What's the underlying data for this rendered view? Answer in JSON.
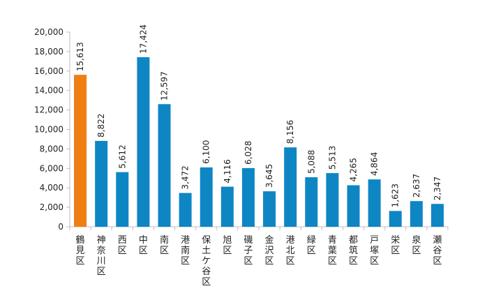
{
  "chart_data": {
    "type": "bar",
    "categories": [
      "鶴見区",
      "神奈川区",
      "西区",
      "中区",
      "南区",
      "港南区",
      "保土ケ谷区",
      "旭区",
      "磯子区",
      "金沢区",
      "港北区",
      "緑区",
      "青葉区",
      "都筑区",
      "戸塚区",
      "栄区",
      "泉区",
      "瀬谷区"
    ],
    "values": [
      15613,
      8822,
      5612,
      17424,
      12597,
      3472,
      6100,
      4116,
      6028,
      3645,
      8156,
      5088,
      5513,
      4265,
      4864,
      1623,
      2637,
      2347
    ],
    "value_labels": [
      "15,613",
      "8,822",
      "5,612",
      "17,424",
      "12,597",
      "3,472",
      "6,100",
      "4,116",
      "6,028",
      "3,645",
      "8,156",
      "5,088",
      "5,513",
      "4,265",
      "4,864",
      "1,623",
      "2,637",
      "2,347"
    ],
    "yticks": [
      "0",
      "2,000",
      "4,000",
      "6,000",
      "8,000",
      "10,000",
      "12,000",
      "14,000",
      "16,000",
      "18,000",
      "20,000"
    ],
    "ylim": [
      0,
      20000
    ],
    "title": "",
    "xlabel": "",
    "ylabel": "",
    "grid": false,
    "legend": "none",
    "colors": {
      "default": "#0E86C4",
      "highlight": "#F07E12",
      "axis": "#BFBFBF"
    },
    "highlight_index": 0
  }
}
